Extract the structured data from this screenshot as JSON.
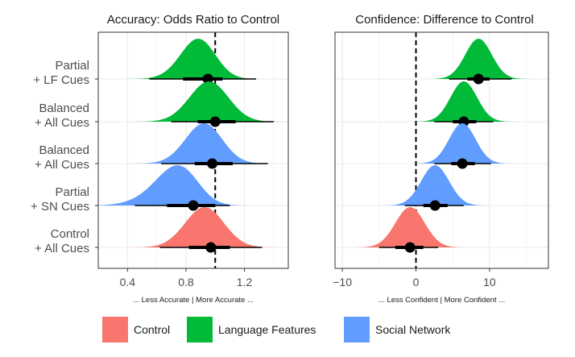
{
  "colors": {
    "control": "#F8766D",
    "language_features": "#00BA38",
    "social_network": "#619CFF",
    "point": "#000000",
    "panel_border": "#333333",
    "grid": "#ebebeb"
  },
  "legend": {
    "placement": "bottom",
    "items": [
      {
        "label": "Control",
        "color_key": "control"
      },
      {
        "label": "Language Features",
        "color_key": "language_features"
      },
      {
        "label": "Social Network",
        "color_key": "social_network"
      }
    ]
  },
  "chart_data": [
    {
      "type": "density-interval",
      "title": "Accuracy: Odds Ratio to Control",
      "axis_note": "... Less Accurate   |  More Accurate ...",
      "xlim": [
        0.2,
        1.5
      ],
      "xticks": [
        0.4,
        0.8,
        1.2
      ],
      "xtick_labels": [
        "0.4",
        "0.8",
        "1.2"
      ],
      "reference_line": 1.0,
      "grid": true,
      "categories": [
        "Partial\n+ LF Cues",
        "Balanced\n+ All Cues",
        "Balanced\n+ All Cues",
        "Partial\n+ SN Cues",
        "Control\n+ All Cues"
      ],
      "series": [
        {
          "group": "language_features",
          "mean": 0.95,
          "sd": 0.14,
          "skew": 0.2,
          "inner": [
            0.78,
            1.05
          ],
          "outer": [
            0.55,
            1.28
          ]
        },
        {
          "group": "language_features",
          "mean": 1.0,
          "sd": 0.14,
          "skew": 0.1,
          "inner": [
            0.88,
            1.14
          ],
          "outer": [
            0.7,
            1.4
          ]
        },
        {
          "group": "social_network",
          "mean": 0.98,
          "sd": 0.14,
          "skew": 0.15,
          "inner": [
            0.86,
            1.12
          ],
          "outer": [
            0.63,
            1.36
          ]
        },
        {
          "group": "social_network",
          "mean": 0.85,
          "sd": 0.2,
          "skew": 0.35,
          "inner": [
            0.67,
            1.0
          ],
          "outer": [
            0.45,
            1.1
          ]
        },
        {
          "group": "control",
          "mean": 0.97,
          "sd": 0.14,
          "skew": 0.1,
          "inner": [
            0.82,
            1.1
          ],
          "outer": [
            0.62,
            1.32
          ]
        }
      ]
    },
    {
      "type": "density-interval",
      "title": "Confidence: Difference to Control",
      "axis_note": "... Less Confident |  More Confident ...",
      "xlim": [
        -11,
        18
      ],
      "xticks": [
        -10,
        0,
        10
      ],
      "xtick_labels": [
        "−10",
        "0",
        "10"
      ],
      "reference_line": 0,
      "grid": true,
      "categories": [
        "Partial\n+ LF Cues",
        "Balanced\n+ All Cues",
        "Balanced\n+ All Cues",
        "Partial\n+ SN Cues",
        "Control\n+ All Cues"
      ],
      "series": [
        {
          "group": "language_features",
          "mean": 8.5,
          "sd": 1.8,
          "skew": 0,
          "inner": [
            7.0,
            10.0
          ],
          "outer": [
            4.5,
            13.0
          ]
        },
        {
          "group": "language_features",
          "mean": 6.5,
          "sd": 1.8,
          "skew": 0,
          "inner": [
            5.0,
            8.2
          ],
          "outer": [
            2.5,
            10.5
          ]
        },
        {
          "group": "social_network",
          "mean": 6.3,
          "sd": 1.8,
          "skew": 0,
          "inner": [
            4.8,
            8.0
          ],
          "outer": [
            2.5,
            10.2
          ]
        },
        {
          "group": "social_network",
          "mean": 2.6,
          "sd": 1.9,
          "skew": 0,
          "inner": [
            1.0,
            4.3
          ],
          "outer": [
            -1.5,
            6.5
          ]
        },
        {
          "group": "control",
          "mean": -0.8,
          "sd": 2.0,
          "skew": 0,
          "inner": [
            -2.8,
            1.0
          ],
          "outer": [
            -5.0,
            3.0
          ]
        }
      ]
    }
  ]
}
